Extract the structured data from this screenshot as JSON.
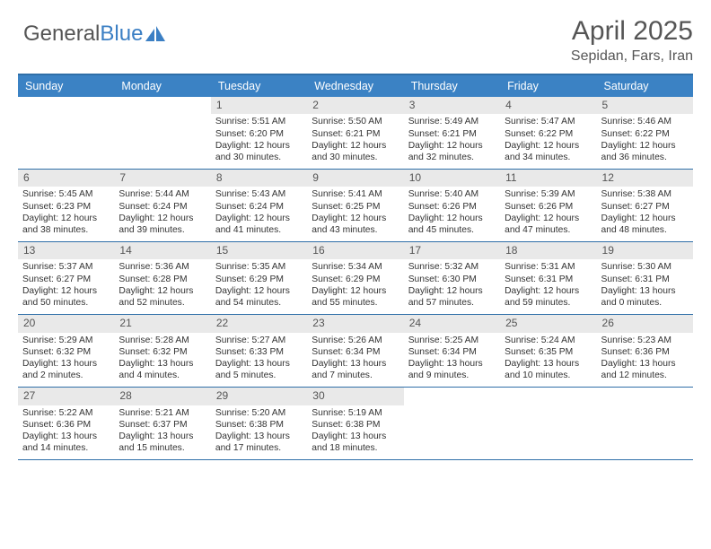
{
  "logo": {
    "text1": "General",
    "text2": "Blue"
  },
  "title": "April 2025",
  "location": "Sepidan, Fars, Iran",
  "colors": {
    "header_bg": "#3b82c4",
    "rule": "#2f6fa8",
    "num_bg": "#e9e9e9",
    "text": "#333333",
    "muted": "#555555"
  },
  "day_names": [
    "Sunday",
    "Monday",
    "Tuesday",
    "Wednesday",
    "Thursday",
    "Friday",
    "Saturday"
  ],
  "weeks": [
    [
      {
        "n": "",
        "empty": true
      },
      {
        "n": "",
        "empty": true
      },
      {
        "n": "1",
        "sunrise": "5:51 AM",
        "sunset": "6:20 PM",
        "daylight": "12 hours and 30 minutes."
      },
      {
        "n": "2",
        "sunrise": "5:50 AM",
        "sunset": "6:21 PM",
        "daylight": "12 hours and 30 minutes."
      },
      {
        "n": "3",
        "sunrise": "5:49 AM",
        "sunset": "6:21 PM",
        "daylight": "12 hours and 32 minutes."
      },
      {
        "n": "4",
        "sunrise": "5:47 AM",
        "sunset": "6:22 PM",
        "daylight": "12 hours and 34 minutes."
      },
      {
        "n": "5",
        "sunrise": "5:46 AM",
        "sunset": "6:22 PM",
        "daylight": "12 hours and 36 minutes."
      }
    ],
    [
      {
        "n": "6",
        "sunrise": "5:45 AM",
        "sunset": "6:23 PM",
        "daylight": "12 hours and 38 minutes."
      },
      {
        "n": "7",
        "sunrise": "5:44 AM",
        "sunset": "6:24 PM",
        "daylight": "12 hours and 39 minutes."
      },
      {
        "n": "8",
        "sunrise": "5:43 AM",
        "sunset": "6:24 PM",
        "daylight": "12 hours and 41 minutes."
      },
      {
        "n": "9",
        "sunrise": "5:41 AM",
        "sunset": "6:25 PM",
        "daylight": "12 hours and 43 minutes."
      },
      {
        "n": "10",
        "sunrise": "5:40 AM",
        "sunset": "6:26 PM",
        "daylight": "12 hours and 45 minutes."
      },
      {
        "n": "11",
        "sunrise": "5:39 AM",
        "sunset": "6:26 PM",
        "daylight": "12 hours and 47 minutes."
      },
      {
        "n": "12",
        "sunrise": "5:38 AM",
        "sunset": "6:27 PM",
        "daylight": "12 hours and 48 minutes."
      }
    ],
    [
      {
        "n": "13",
        "sunrise": "5:37 AM",
        "sunset": "6:27 PM",
        "daylight": "12 hours and 50 minutes."
      },
      {
        "n": "14",
        "sunrise": "5:36 AM",
        "sunset": "6:28 PM",
        "daylight": "12 hours and 52 minutes."
      },
      {
        "n": "15",
        "sunrise": "5:35 AM",
        "sunset": "6:29 PM",
        "daylight": "12 hours and 54 minutes."
      },
      {
        "n": "16",
        "sunrise": "5:34 AM",
        "sunset": "6:29 PM",
        "daylight": "12 hours and 55 minutes."
      },
      {
        "n": "17",
        "sunrise": "5:32 AM",
        "sunset": "6:30 PM",
        "daylight": "12 hours and 57 minutes."
      },
      {
        "n": "18",
        "sunrise": "5:31 AM",
        "sunset": "6:31 PM",
        "daylight": "12 hours and 59 minutes."
      },
      {
        "n": "19",
        "sunrise": "5:30 AM",
        "sunset": "6:31 PM",
        "daylight": "13 hours and 0 minutes."
      }
    ],
    [
      {
        "n": "20",
        "sunrise": "5:29 AM",
        "sunset": "6:32 PM",
        "daylight": "13 hours and 2 minutes."
      },
      {
        "n": "21",
        "sunrise": "5:28 AM",
        "sunset": "6:32 PM",
        "daylight": "13 hours and 4 minutes."
      },
      {
        "n": "22",
        "sunrise": "5:27 AM",
        "sunset": "6:33 PM",
        "daylight": "13 hours and 5 minutes."
      },
      {
        "n": "23",
        "sunrise": "5:26 AM",
        "sunset": "6:34 PM",
        "daylight": "13 hours and 7 minutes."
      },
      {
        "n": "24",
        "sunrise": "5:25 AM",
        "sunset": "6:34 PM",
        "daylight": "13 hours and 9 minutes."
      },
      {
        "n": "25",
        "sunrise": "5:24 AM",
        "sunset": "6:35 PM",
        "daylight": "13 hours and 10 minutes."
      },
      {
        "n": "26",
        "sunrise": "5:23 AM",
        "sunset": "6:36 PM",
        "daylight": "13 hours and 12 minutes."
      }
    ],
    [
      {
        "n": "27",
        "sunrise": "5:22 AM",
        "sunset": "6:36 PM",
        "daylight": "13 hours and 14 minutes."
      },
      {
        "n": "28",
        "sunrise": "5:21 AM",
        "sunset": "6:37 PM",
        "daylight": "13 hours and 15 minutes."
      },
      {
        "n": "29",
        "sunrise": "5:20 AM",
        "sunset": "6:38 PM",
        "daylight": "13 hours and 17 minutes."
      },
      {
        "n": "30",
        "sunrise": "5:19 AM",
        "sunset": "6:38 PM",
        "daylight": "13 hours and 18 minutes."
      },
      {
        "n": "",
        "empty": true
      },
      {
        "n": "",
        "empty": true
      },
      {
        "n": "",
        "empty": true
      }
    ]
  ],
  "labels": {
    "sunrise": "Sunrise:",
    "sunset": "Sunset:",
    "daylight": "Daylight:"
  }
}
